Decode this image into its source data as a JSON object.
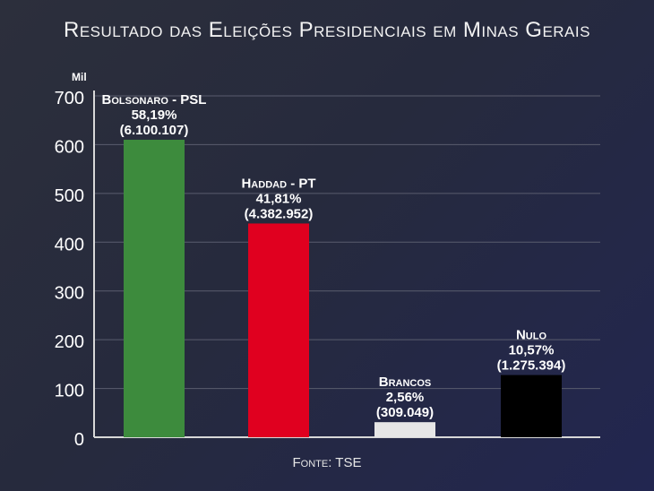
{
  "title": "Resultado das Eleições Presidenciais em Minas Gerais",
  "source": "Fonte: TSE",
  "colors": {
    "grid": "#5a5d6e",
    "axis": "#d8d8d8",
    "text": "#ffffff"
  },
  "chart_data": {
    "type": "bar",
    "unit_label": "Mil",
    "ylim": [
      0,
      700
    ],
    "yticks": [
      0,
      100,
      200,
      300,
      400,
      500,
      600,
      700
    ],
    "grid": true,
    "categories": [
      "Bolsonaro - PSL",
      "Haddad - PT",
      "Brancos",
      "Nulo"
    ],
    "values": [
      610.0107,
      438.2952,
      30.9049,
      127.5394
    ],
    "percent_labels": [
      "58,19%",
      "41,81%",
      "2,56%",
      "10,57%"
    ],
    "vote_labels": [
      "(6.100.107)",
      "(4.382.952)",
      "(309.049)",
      "(1.275.394)"
    ],
    "bar_colors": [
      "#3d8b3d",
      "#e0001f",
      "#e6e6e6",
      "#000000"
    ]
  }
}
